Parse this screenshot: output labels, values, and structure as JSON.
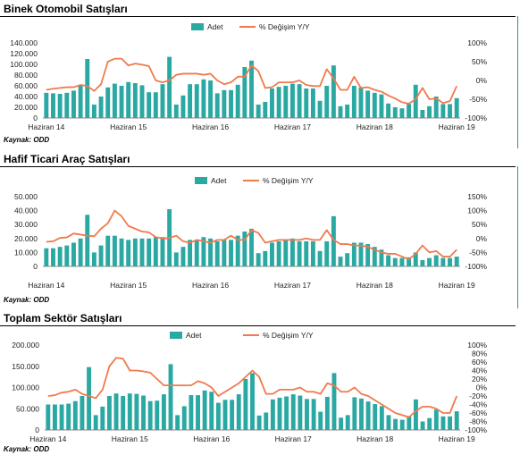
{
  "source_label": "Kaynak: ODD",
  "colors": {
    "bar": "#2aa8a2",
    "line": "#f07a4e",
    "axis": "#888888",
    "frame": "#2e9e55"
  },
  "chart_data": [
    {
      "type": "bar",
      "title": "Binek Otomobil Satışları",
      "legend": [
        "Adet",
        "% Değişim Y/Y"
      ],
      "legend_position": "top",
      "grid": false,
      "x_tick_labels": [
        "Haziran 14",
        "Haziran 15",
        "Haziran 16",
        "Haziran 17",
        "Haziran 18",
        "Haziran 19"
      ],
      "y_left": {
        "ticks": [
          "0",
          "20.000",
          "40.000",
          "60.000",
          "80.000",
          "100.000",
          "120.000",
          "140.000"
        ],
        "min": 0,
        "max": 140000
      },
      "y_right": {
        "ticks": [
          "-100%",
          "-50%",
          "0%",
          "50%",
          "100%"
        ],
        "min": -100,
        "max": 100
      },
      "series": [
        {
          "name": "Adet",
          "type": "bar",
          "axis": "left",
          "values": [
            47000,
            46000,
            45000,
            47000,
            51000,
            60000,
            110000,
            25000,
            40000,
            57000,
            64000,
            60000,
            67000,
            65000,
            61000,
            48000,
            48000,
            63000,
            114000,
            25000,
            42000,
            63000,
            63000,
            72000,
            70000,
            46000,
            52000,
            52000,
            62000,
            95000,
            107000,
            25000,
            30000,
            55000,
            58000,
            60000,
            64000,
            63000,
            55000,
            55000,
            32000,
            60000,
            98000,
            22000,
            25000,
            60000,
            57000,
            51000,
            47000,
            44000,
            27000,
            20000,
            18000,
            26000,
            62000,
            15000,
            22000,
            40000,
            26000,
            26000,
            37000
          ]
        },
        {
          "name": "% Değişim Y/Y",
          "type": "line",
          "axis": "right",
          "values": [
            -25,
            -22,
            -20,
            -18,
            -18,
            -12,
            -15,
            -28,
            -10,
            50,
            58,
            58,
            40,
            45,
            42,
            38,
            0,
            -5,
            0,
            15,
            18,
            18,
            18,
            15,
            18,
            0,
            -10,
            -5,
            10,
            10,
            40,
            25,
            -20,
            -18,
            -5,
            -5,
            -5,
            0,
            -12,
            -15,
            -15,
            30,
            5,
            -25,
            -25,
            10,
            -20,
            -18,
            -25,
            -30,
            -40,
            -48,
            -58,
            -62,
            -50,
            -20,
            -50,
            -48,
            -60,
            -55,
            -15
          ]
        }
      ]
    },
    {
      "type": "bar",
      "title": "Hafif Ticari Araç Satışları",
      "legend": [
        "Adet",
        "% Değişim Y/Y"
      ],
      "legend_position": "top",
      "grid": false,
      "x_tick_labels": [
        "Haziran 14",
        "Haziran 15",
        "Haziran 16",
        "Haziran 17",
        "Haziran 18",
        "Haziran 19"
      ],
      "y_left": {
        "ticks": [
          "0",
          "10.000",
          "20.000",
          "30.000",
          "40.000",
          "50.000"
        ],
        "min": 0,
        "max": 50000
      },
      "y_right": {
        "ticks": [
          "-100%",
          "-50%",
          "0%",
          "50%",
          "100%",
          "150%"
        ],
        "min": -100,
        "max": 150
      },
      "series": [
        {
          "name": "Adet",
          "type": "bar",
          "axis": "left",
          "values": [
            13000,
            13000,
            14000,
            15000,
            17000,
            20000,
            37000,
            10000,
            15000,
            22000,
            22000,
            20000,
            19000,
            20000,
            20000,
            20000,
            21000,
            21000,
            41000,
            10000,
            14000,
            19000,
            19000,
            21000,
            20000,
            18000,
            19000,
            19000,
            22000,
            25000,
            27000,
            9500,
            11000,
            17000,
            18000,
            19000,
            20000,
            18000,
            18000,
            18000,
            11000,
            18000,
            36000,
            7000,
            9500,
            17000,
            17000,
            16000,
            14000,
            12000,
            8000,
            6000,
            6000,
            6500,
            10000,
            4500,
            6000,
            8000,
            6000,
            6000,
            7000
          ]
        },
        {
          "name": "% Değişim Y/Y",
          "type": "line",
          "axis": "right",
          "values": [
            -12,
            -10,
            2,
            4,
            18,
            14,
            10,
            8,
            35,
            55,
            100,
            80,
            45,
            35,
            25,
            22,
            5,
            0,
            2,
            10,
            -10,
            -15,
            -5,
            -10,
            -15,
            -5,
            -5,
            10,
            -5,
            -5,
            30,
            20,
            -15,
            -10,
            -5,
            -5,
            -5,
            -5,
            0,
            -5,
            -5,
            30,
            -5,
            -20,
            -20,
            -25,
            -25,
            -30,
            -40,
            -50,
            -55,
            -55,
            -65,
            -75,
            -55,
            -25,
            -50,
            -45,
            -65,
            -65,
            -40
          ]
        }
      ]
    },
    {
      "type": "bar",
      "title": "Toplam Sektör Satışları",
      "legend": [
        "Adet",
        "% Değişim Y/Y"
      ],
      "legend_position": "top",
      "grid": false,
      "x_tick_labels": [
        "Haziran 14",
        "Haziran 15",
        "Haziran 16",
        "Haziran 17",
        "Haziran 18",
        "Haziran 19"
      ],
      "y_left": {
        "ticks": [
          "0",
          "50.000",
          "100.000",
          "150.000",
          "200.000"
        ],
        "min": 0,
        "max": 200000
      },
      "y_right": {
        "ticks": [
          "-100%",
          "-80%",
          "-60%",
          "-40%",
          "-20%",
          "0%",
          "20%",
          "40%",
          "60%",
          "80%",
          "100%"
        ],
        "min": -100,
        "max": 100
      },
      "series": [
        {
          "name": "Adet",
          "type": "bar",
          "axis": "left",
          "values": [
            60000,
            60000,
            60000,
            62000,
            68000,
            80000,
            148000,
            35000,
            55000,
            80000,
            86000,
            80000,
            86000,
            85000,
            81000,
            68000,
            69000,
            84000,
            155000,
            35000,
            56000,
            82000,
            82000,
            93000,
            90000,
            64000,
            71000,
            71000,
            84000,
            120000,
            134000,
            34000,
            41000,
            72000,
            76000,
            79000,
            84000,
            81000,
            73000,
            73000,
            43000,
            78000,
            134000,
            29000,
            35000,
            77000,
            74000,
            67000,
            61000,
            56000,
            35000,
            26000,
            24000,
            33000,
            72000,
            20000,
            28000,
            48000,
            32000,
            32000,
            44000
          ]
        },
        {
          "name": "% Değişim Y/Y",
          "type": "line",
          "axis": "right",
          "values": [
            -20,
            -18,
            -12,
            -10,
            -5,
            -15,
            -20,
            -25,
            -5,
            50,
            70,
            68,
            40,
            40,
            38,
            35,
            20,
            5,
            5,
            5,
            5,
            5,
            15,
            10,
            0,
            -20,
            -10,
            0,
            10,
            25,
            40,
            25,
            -15,
            -15,
            -5,
            -5,
            -5,
            0,
            -10,
            -10,
            -15,
            10,
            5,
            -10,
            -10,
            0,
            -15,
            -20,
            -30,
            -40,
            -50,
            -60,
            -65,
            -70,
            -55,
            -45,
            -45,
            -50,
            -60,
            -60,
            -20
          ]
        }
      ]
    }
  ]
}
